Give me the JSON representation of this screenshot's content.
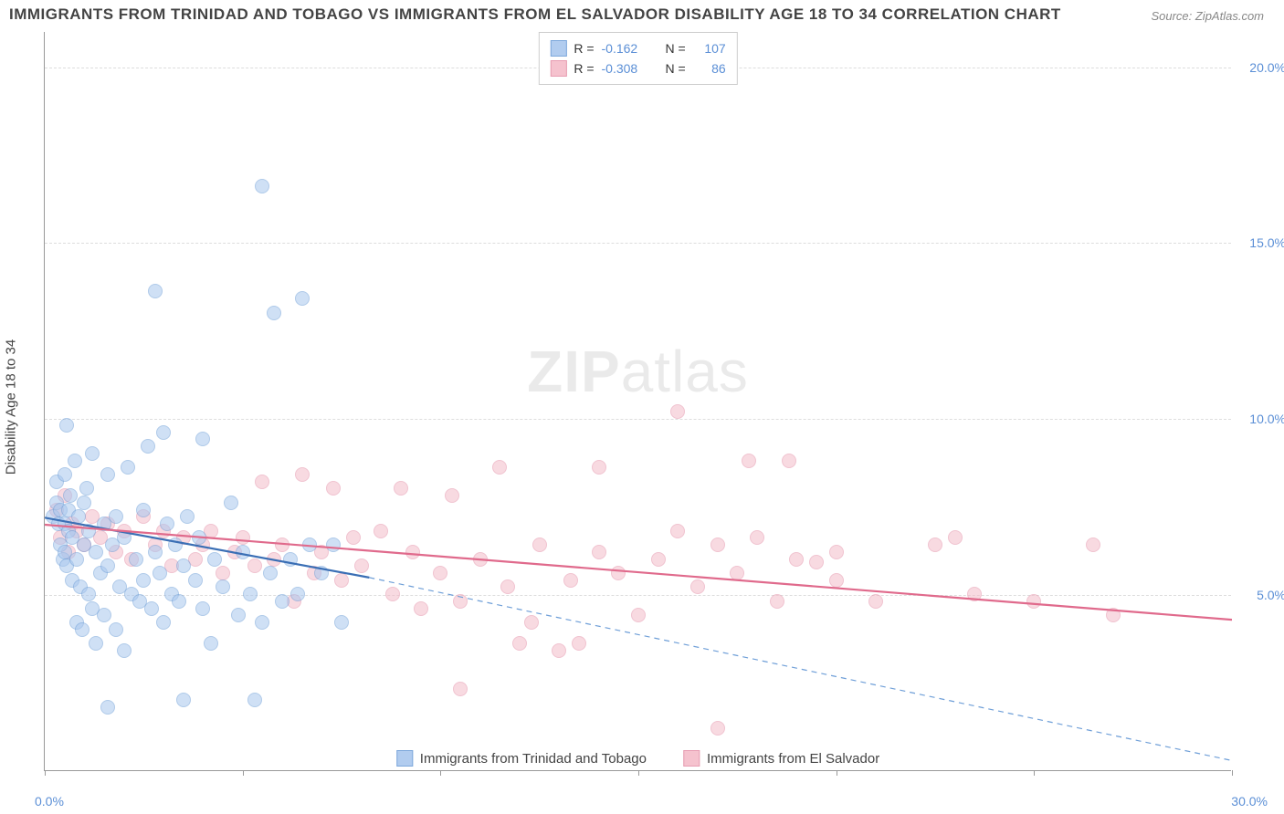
{
  "title": "IMMIGRANTS FROM TRINIDAD AND TOBAGO VS IMMIGRANTS FROM EL SALVADOR DISABILITY AGE 18 TO 34 CORRELATION CHART",
  "source": "Source: ZipAtlas.com",
  "watermark_bold": "ZIP",
  "watermark_light": "atlas",
  "ylabel": "Disability Age 18 to 34",
  "axes": {
    "xlim": [
      0,
      30
    ],
    "ylim": [
      0,
      21
    ],
    "ygrid": [
      5,
      10,
      15,
      20
    ],
    "ytick_labels": [
      "5.0%",
      "10.0%",
      "15.0%",
      "20.0%"
    ],
    "origin_label": "0.0%",
    "bottom_right_label": "30.0%",
    "xticks": [
      0,
      5,
      10,
      15,
      20,
      25,
      30
    ],
    "grid_color": "#dddddd",
    "axis_color": "#999999",
    "tick_label_color": "#5b8fd6",
    "tick_fontsize": 14
  },
  "series": {
    "trinidad": {
      "label": "Immigrants from Trinidad and Tobago",
      "r": "-0.162",
      "n": "107",
      "fill": "#a9c7ee",
      "stroke": "#6f9fd8",
      "fill_opacity": 0.55,
      "marker_radius": 8,
      "line": {
        "x1": 0,
        "y1": 7.2,
        "x2": 8.2,
        "y2": 5.5,
        "width": 2.2,
        "dash": "none"
      },
      "line_ext": {
        "x1": 8.2,
        "y1": 5.5,
        "x2": 30,
        "y2": 0.3,
        "width": 1.2,
        "dash": "6,5"
      },
      "points": [
        [
          0.2,
          7.2
        ],
        [
          0.3,
          7.6
        ],
        [
          0.3,
          8.2
        ],
        [
          0.35,
          7.0
        ],
        [
          0.4,
          6.4
        ],
        [
          0.4,
          7.4
        ],
        [
          0.45,
          6.0
        ],
        [
          0.5,
          8.4
        ],
        [
          0.5,
          7.0
        ],
        [
          0.5,
          6.2
        ],
        [
          0.55,
          9.8
        ],
        [
          0.55,
          5.8
        ],
        [
          0.6,
          6.8
        ],
        [
          0.6,
          7.4
        ],
        [
          0.65,
          7.8
        ],
        [
          0.7,
          5.4
        ],
        [
          0.7,
          6.6
        ],
        [
          0.75,
          8.8
        ],
        [
          0.8,
          4.2
        ],
        [
          0.8,
          6.0
        ],
        [
          0.85,
          7.2
        ],
        [
          0.9,
          5.2
        ],
        [
          0.95,
          4.0
        ],
        [
          1.0,
          6.4
        ],
        [
          1.0,
          7.6
        ],
        [
          1.05,
          8.0
        ],
        [
          1.1,
          5.0
        ],
        [
          1.1,
          6.8
        ],
        [
          1.2,
          9.0
        ],
        [
          1.2,
          4.6
        ],
        [
          1.3,
          6.2
        ],
        [
          1.3,
          3.6
        ],
        [
          1.4,
          5.6
        ],
        [
          1.5,
          7.0
        ],
        [
          1.5,
          4.4
        ],
        [
          1.6,
          8.4
        ],
        [
          1.6,
          5.8
        ],
        [
          1.7,
          6.4
        ],
        [
          1.8,
          4.0
        ],
        [
          1.8,
          7.2
        ],
        [
          1.9,
          5.2
        ],
        [
          2.0,
          6.6
        ],
        [
          2.0,
          3.4
        ],
        [
          2.1,
          8.6
        ],
        [
          2.2,
          5.0
        ],
        [
          2.3,
          6.0
        ],
        [
          2.4,
          4.8
        ],
        [
          2.5,
          7.4
        ],
        [
          2.5,
          5.4
        ],
        [
          2.6,
          9.2
        ],
        [
          2.7,
          4.6
        ],
        [
          2.8,
          6.2
        ],
        [
          2.9,
          5.6
        ],
        [
          3.0,
          4.2
        ],
        [
          3.0,
          9.6
        ],
        [
          3.1,
          7.0
        ],
        [
          3.2,
          5.0
        ],
        [
          3.3,
          6.4
        ],
        [
          3.4,
          4.8
        ],
        [
          3.5,
          5.8
        ],
        [
          3.5,
          2.0
        ],
        [
          3.6,
          7.2
        ],
        [
          3.8,
          5.4
        ],
        [
          3.9,
          6.6
        ],
        [
          4.0,
          4.6
        ],
        [
          4.0,
          9.4
        ],
        [
          4.2,
          3.6
        ],
        [
          4.3,
          6.0
        ],
        [
          4.5,
          5.2
        ],
        [
          4.7,
          7.6
        ],
        [
          4.9,
          4.4
        ],
        [
          5.0,
          6.2
        ],
        [
          5.2,
          5.0
        ],
        [
          5.3,
          2.0
        ],
        [
          5.5,
          4.2
        ],
        [
          5.5,
          16.6
        ],
        [
          5.7,
          5.6
        ],
        [
          5.8,
          13.0
        ],
        [
          6.0,
          4.8
        ],
        [
          6.2,
          6.0
        ],
        [
          6.4,
          5.0
        ],
        [
          6.5,
          13.4
        ],
        [
          6.7,
          6.4
        ],
        [
          7.0,
          5.6
        ],
        [
          7.3,
          6.4
        ],
        [
          7.5,
          4.2
        ],
        [
          2.8,
          13.6
        ],
        [
          1.6,
          1.8
        ]
      ]
    },
    "elsalvador": {
      "label": "Immigrants from El Salvador",
      "r": "-0.308",
      "n": "86",
      "fill": "#f4bcc9",
      "stroke": "#e593aa",
      "fill_opacity": 0.55,
      "marker_radius": 8,
      "line": {
        "x1": 0,
        "y1": 7.0,
        "x2": 30,
        "y2": 4.3,
        "width": 2.2,
        "dash": "none"
      },
      "points": [
        [
          0.3,
          7.4
        ],
        [
          0.4,
          6.6
        ],
        [
          0.5,
          7.8
        ],
        [
          0.6,
          6.2
        ],
        [
          0.7,
          7.0
        ],
        [
          0.8,
          6.8
        ],
        [
          1.0,
          6.4
        ],
        [
          1.2,
          7.2
        ],
        [
          1.4,
          6.6
        ],
        [
          1.6,
          7.0
        ],
        [
          1.8,
          6.2
        ],
        [
          2.0,
          6.8
        ],
        [
          2.2,
          6.0
        ],
        [
          2.5,
          7.2
        ],
        [
          2.8,
          6.4
        ],
        [
          3.0,
          6.8
        ],
        [
          3.2,
          5.8
        ],
        [
          3.5,
          6.6
        ],
        [
          3.8,
          6.0
        ],
        [
          4.0,
          6.4
        ],
        [
          4.2,
          6.8
        ],
        [
          4.5,
          5.6
        ],
        [
          4.8,
          6.2
        ],
        [
          5.0,
          6.6
        ],
        [
          5.3,
          5.8
        ],
        [
          5.5,
          8.2
        ],
        [
          5.8,
          6.0
        ],
        [
          6.0,
          6.4
        ],
        [
          6.3,
          4.8
        ],
        [
          6.5,
          8.4
        ],
        [
          6.8,
          5.6
        ],
        [
          7.0,
          6.2
        ],
        [
          7.3,
          8.0
        ],
        [
          7.5,
          5.4
        ],
        [
          7.8,
          6.6
        ],
        [
          8.0,
          5.8
        ],
        [
          8.5,
          6.8
        ],
        [
          8.8,
          5.0
        ],
        [
          9.0,
          8.0
        ],
        [
          9.3,
          6.2
        ],
        [
          9.5,
          4.6
        ],
        [
          10.0,
          5.6
        ],
        [
          10.3,
          7.8
        ],
        [
          10.5,
          4.8
        ],
        [
          10.5,
          2.3
        ],
        [
          11.0,
          6.0
        ],
        [
          11.5,
          8.6
        ],
        [
          11.7,
          5.2
        ],
        [
          12.0,
          3.6
        ],
        [
          12.3,
          4.2
        ],
        [
          12.5,
          6.4
        ],
        [
          13.0,
          3.4
        ],
        [
          13.3,
          5.4
        ],
        [
          13.5,
          3.6
        ],
        [
          14.0,
          8.6
        ],
        [
          14.0,
          6.2
        ],
        [
          14.5,
          5.6
        ],
        [
          15.0,
          4.4
        ],
        [
          15.5,
          6.0
        ],
        [
          16.0,
          6.8
        ],
        [
          16.0,
          10.2
        ],
        [
          16.5,
          5.2
        ],
        [
          17.0,
          6.4
        ],
        [
          17.0,
          1.2
        ],
        [
          17.5,
          5.6
        ],
        [
          17.8,
          8.8
        ],
        [
          18.0,
          6.6
        ],
        [
          18.5,
          4.8
        ],
        [
          18.8,
          8.8
        ],
        [
          19.0,
          6.0
        ],
        [
          19.5,
          5.9
        ],
        [
          20.0,
          5.4
        ],
        [
          20.0,
          6.2
        ],
        [
          21.0,
          4.8
        ],
        [
          22.5,
          6.4
        ],
        [
          23.0,
          6.6
        ],
        [
          23.5,
          5.0
        ],
        [
          25.0,
          4.8
        ],
        [
          26.5,
          6.4
        ],
        [
          27.0,
          4.4
        ]
      ]
    }
  },
  "legend_top": {
    "r_label": "R =",
    "n_label": "N ="
  }
}
